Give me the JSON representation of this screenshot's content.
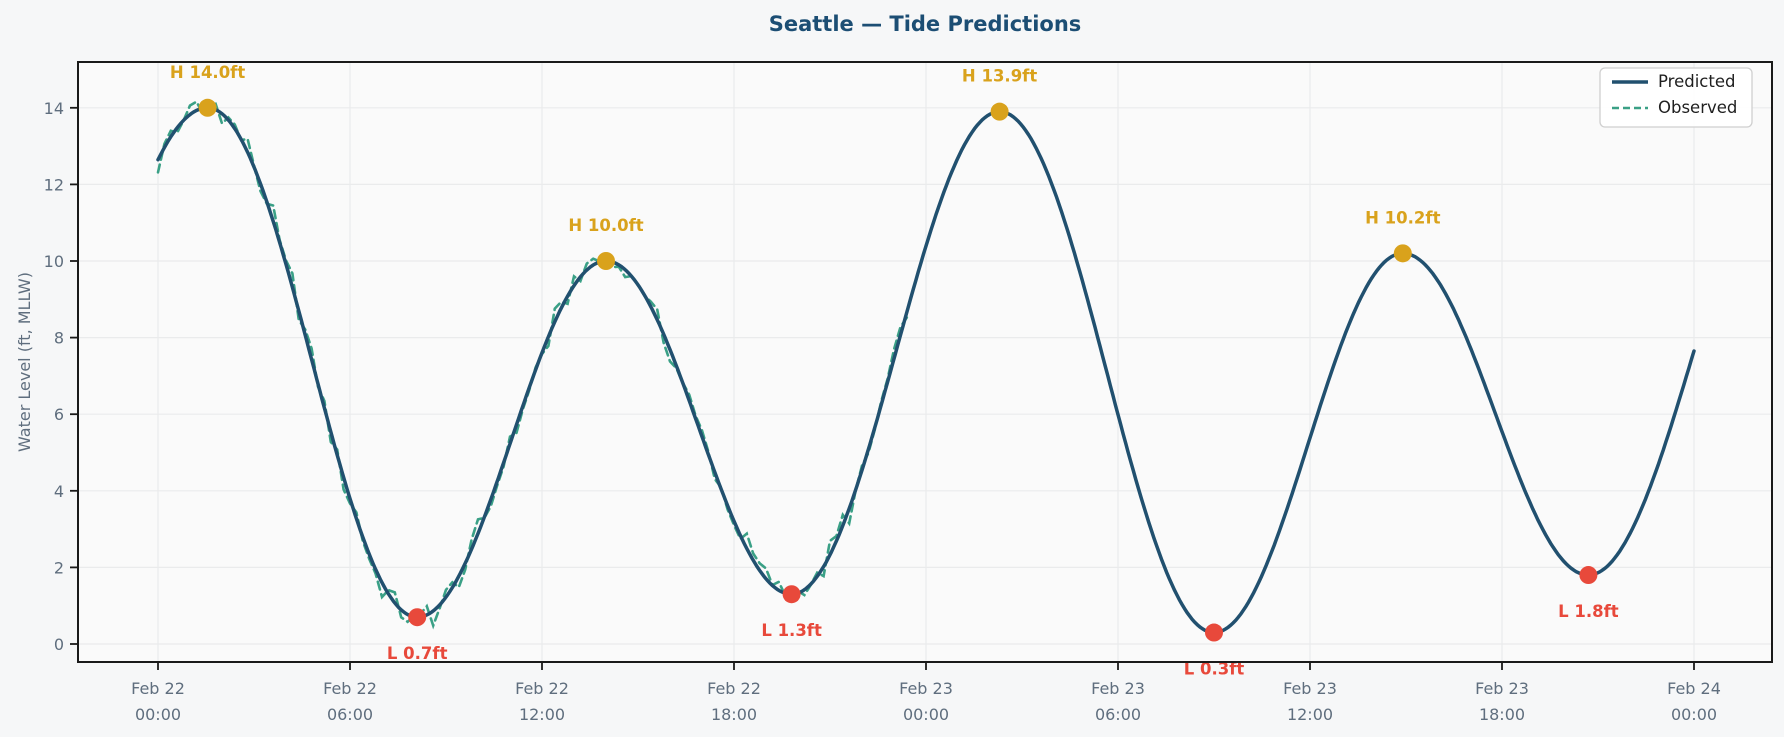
{
  "title": "Seattle — Tide Predictions",
  "chart_data": {
    "type": "line",
    "title": "Seattle — Tide Predictions",
    "xlabel": "",
    "ylabel": "Water Level (ft, MLLW)",
    "grid": true,
    "x_axis": {
      "range_hours": [
        0,
        48
      ],
      "ticks": [
        {
          "date": "Feb 22",
          "time": "00:00",
          "hour": 0
        },
        {
          "date": "Feb 22",
          "time": "06:00",
          "hour": 6
        },
        {
          "date": "Feb 22",
          "time": "12:00",
          "hour": 12
        },
        {
          "date": "Feb 22",
          "time": "18:00",
          "hour": 18
        },
        {
          "date": "Feb 23",
          "time": "00:00",
          "hour": 24
        },
        {
          "date": "Feb 23",
          "time": "06:00",
          "hour": 30
        },
        {
          "date": "Feb 23",
          "time": "12:00",
          "hour": 36
        },
        {
          "date": "Feb 23",
          "time": "18:00",
          "hour": 42
        },
        {
          "date": "Feb 24",
          "time": "00:00",
          "hour": 48
        }
      ]
    },
    "y_axis": {
      "range": [
        -0.47,
        15.2
      ],
      "ticks": [
        0,
        2,
        4,
        6,
        8,
        10,
        12,
        14
      ]
    },
    "legend": {
      "position": "upper right",
      "entries": [
        {
          "label": "Predicted",
          "style": "solid",
          "color": "#21506f"
        },
        {
          "label": "Observed",
          "style": "dashed",
          "color": "#3aa086"
        }
      ]
    },
    "series": [
      {
        "name": "Predicted",
        "curve": "tide-cosine",
        "color": "#21506f",
        "width": 3.5,
        "t_range": [
          0,
          48
        ],
        "extremes": [
          {
            "hour": -6.0,
            "level": 0.5,
            "virtual": true
          },
          {
            "hour": 1.55,
            "level": 14.0
          },
          {
            "hour": 8.1,
            "level": 0.7
          },
          {
            "hour": 14.0,
            "level": 10.0
          },
          {
            "hour": 19.8,
            "level": 1.3
          },
          {
            "hour": 26.3,
            "level": 13.9
          },
          {
            "hour": 33.0,
            "level": 0.3
          },
          {
            "hour": 38.9,
            "level": 10.2
          },
          {
            "hour": 44.7,
            "level": 1.8
          },
          {
            "hour": 51.3,
            "level": 13.5,
            "virtual": true
          }
        ]
      },
      {
        "name": "Observed",
        "curve": "noisy-follow",
        "color": "#3aa086",
        "width": 2.6,
        "dash": [
          8,
          5
        ],
        "noise_amp": 0.45,
        "t_range": [
          0,
          23.5
        ]
      }
    ],
    "annotations": [
      {
        "kind": "high",
        "text": "H 14.0ft",
        "hour": 1.55,
        "level": 14.0
      },
      {
        "kind": "low",
        "text": "L 0.7ft",
        "hour": 8.1,
        "level": 0.7
      },
      {
        "kind": "high",
        "text": "H 10.0ft",
        "hour": 14.0,
        "level": 10.0
      },
      {
        "kind": "low",
        "text": "L 1.3ft",
        "hour": 19.8,
        "level": 1.3
      },
      {
        "kind": "high",
        "text": "H 13.9ft",
        "hour": 26.3,
        "level": 13.9
      },
      {
        "kind": "low",
        "text": "L 0.3ft",
        "hour": 33.0,
        "level": 0.3
      },
      {
        "kind": "high",
        "text": "H 10.2ft",
        "hour": 38.9,
        "level": 10.2
      },
      {
        "kind": "low",
        "text": "L 1.8ft",
        "hour": 44.7,
        "level": 1.8
      }
    ],
    "colors": {
      "high_marker": "#d9a21c",
      "low_marker": "#e8493b",
      "title": "#1c4e74",
      "tick_label": "#5f6e7e",
      "grid": "#eaebec",
      "spine": "#1a1a1a",
      "plot_bg": "#fafafa",
      "figure_bg": "#f6f7f8",
      "legend_text": "#1f1f1f",
      "legend_border": "#cfcfcf",
      "legend_bg": "#ffffff"
    }
  }
}
